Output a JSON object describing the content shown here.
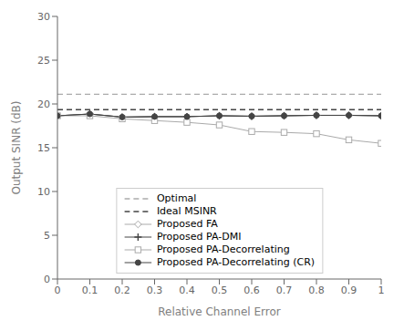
{
  "chart_data": {
    "type": "line",
    "xlabel": "Relative Channel Error",
    "ylabel": "Output SINR (dB)",
    "x": [
      0,
      0.1,
      0.2,
      0.3,
      0.4,
      0.5,
      0.6,
      0.7,
      0.8,
      0.9,
      1.0
    ],
    "xlim": [
      0,
      1.0
    ],
    "ylim": [
      0,
      30
    ],
    "xticks": [
      0,
      0.1,
      0.2,
      0.3,
      0.4,
      0.5,
      0.6,
      0.7,
      0.8,
      0.9,
      1
    ],
    "yticks": [
      0,
      5,
      10,
      15,
      20,
      25,
      30
    ],
    "grid": false,
    "legend": "lower center",
    "series": [
      {
        "name": "Optimal",
        "type": "hline",
        "value": 21.1,
        "color": "#aaaaaa",
        "line_style": "dashed"
      },
      {
        "name": "Ideal MSINR",
        "type": "hline",
        "value": 19.35,
        "color": "#444444",
        "line_style": "dashed"
      },
      {
        "name": "Proposed FA",
        "type": "line",
        "color": "#aaaaaa",
        "marker": "diamond",
        "line_style": "solid",
        "values": [
          18.65,
          18.85,
          18.5,
          18.55,
          18.55,
          18.65,
          18.6,
          18.65,
          18.7,
          18.7,
          18.65
        ]
      },
      {
        "name": "Proposed PA-DMI",
        "type": "line",
        "color": "#444444",
        "marker": "plus",
        "line_style": "solid",
        "values": [
          18.65,
          18.85,
          18.5,
          18.55,
          18.55,
          18.65,
          18.6,
          18.65,
          18.7,
          18.7,
          18.65
        ]
      },
      {
        "name": "Proposed PA-Decorrelating",
        "type": "line",
        "color": "#aaaaaa",
        "marker": "square",
        "line_style": "solid",
        "values": [
          18.65,
          18.65,
          18.3,
          18.1,
          17.9,
          17.6,
          16.85,
          16.75,
          16.6,
          15.9,
          15.5
        ]
      },
      {
        "name": "Proposed PA-Decorrelating (CR)",
        "type": "line",
        "color": "#444444",
        "marker": "circle",
        "line_style": "solid",
        "values": [
          18.65,
          18.85,
          18.5,
          18.55,
          18.55,
          18.65,
          18.6,
          18.65,
          18.7,
          18.7,
          18.65
        ]
      }
    ]
  }
}
